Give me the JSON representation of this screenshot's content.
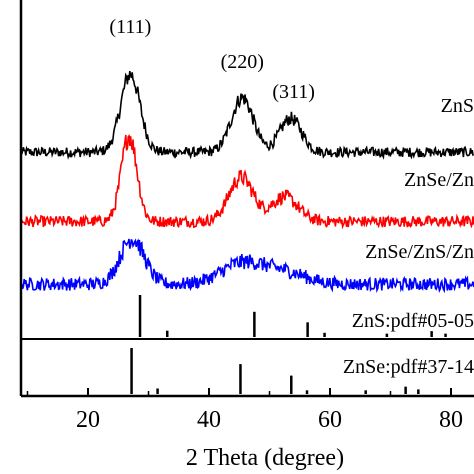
{
  "chart_data": {
    "type": "line",
    "xlabel": "2 Theta (degree)",
    "xlim": [
      10,
      85
    ],
    "x_ticks": [
      20,
      40,
      60,
      80
    ],
    "x_tick_labels": [
      "20",
      "40",
      "60",
      "80"
    ],
    "grid": false,
    "legend": "none",
    "peak_labels": [
      {
        "text": "(111)",
        "x": 27
      },
      {
        "text": "(220)",
        "x": 45.5
      },
      {
        "text": "(311)",
        "x": 53.5
      }
    ],
    "series": [
      {
        "name": "ZnS",
        "color": "#000000",
        "baseline": 0.6,
        "noise": 0.35,
        "peaks": [
          {
            "x": 27,
            "h": 6.0,
            "w": 1.6
          },
          {
            "x": 45.5,
            "h": 4.2,
            "w": 1.8
          },
          {
            "x": 53.5,
            "h": 2.6,
            "w": 1.8
          }
        ]
      },
      {
        "name": "ZnSe/Zn",
        "color": "#ff0000",
        "baseline": 0.5,
        "noise": 0.4,
        "peaks": [
          {
            "x": 26.8,
            "h": 6.6,
            "w": 1.3
          },
          {
            "x": 45.3,
            "h": 3.4,
            "w": 2.0
          },
          {
            "x": 52.5,
            "h": 1.9,
            "w": 2.2
          }
        ]
      },
      {
        "name": "ZnSe/ZnS/Zn",
        "color": "#0000ff",
        "baseline": 0.6,
        "noise": 0.45,
        "peaks": [
          {
            "x": 27.3,
            "h": 3.5,
            "w": 2.0
          },
          {
            "x": 45.5,
            "h": 1.6,
            "w": 3.5
          },
          {
            "x": 52.5,
            "h": 0.9,
            "w": 3.5
          }
        ]
      }
    ],
    "references": [
      {
        "label": "ZnS:pdf#05-05",
        "sticks": [
          {
            "x": 28.6,
            "h": 1.0
          },
          {
            "x": 33.1,
            "h": 0.15
          },
          {
            "x": 47.5,
            "h": 0.6
          },
          {
            "x": 56.3,
            "h": 0.35
          },
          {
            "x": 59.1,
            "h": 0.1
          },
          {
            "x": 69.4,
            "h": 0.08
          },
          {
            "x": 76.8,
            "h": 0.14
          },
          {
            "x": 79.1,
            "h": 0.08
          }
        ]
      },
      {
        "label": "ZnSe:pdf#37-14",
        "sticks": [
          {
            "x": 27.2,
            "h": 1.0
          },
          {
            "x": 31.5,
            "h": 0.12
          },
          {
            "x": 45.2,
            "h": 0.65
          },
          {
            "x": 53.6,
            "h": 0.4
          },
          {
            "x": 56.2,
            "h": 0.08
          },
          {
            "x": 65.9,
            "h": 0.08
          },
          {
            "x": 72.5,
            "h": 0.16
          },
          {
            "x": 74.6,
            "h": 0.1
          }
        ]
      }
    ]
  }
}
